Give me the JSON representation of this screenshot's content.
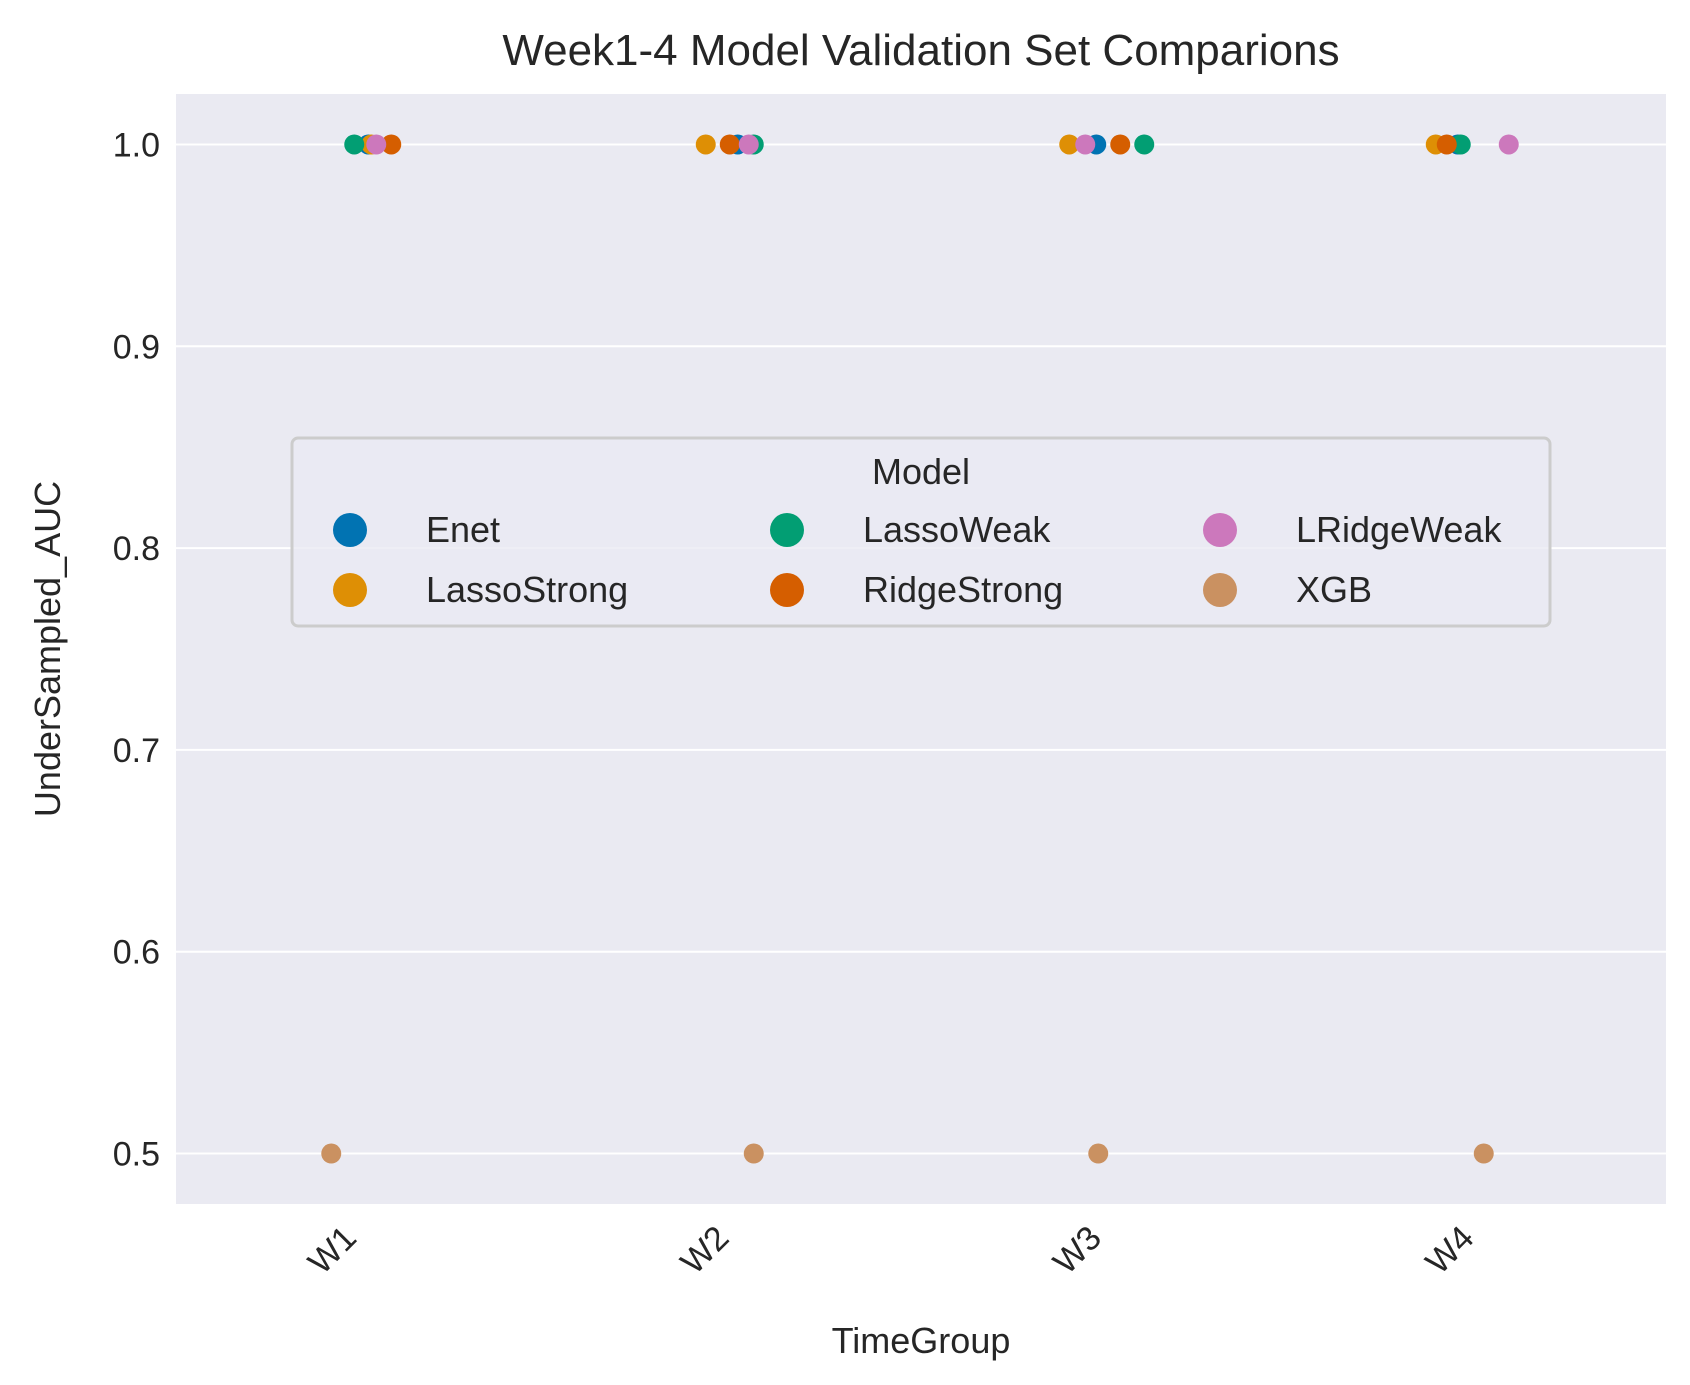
{
  "chart_data": {
    "type": "scatter",
    "title": "Week1-4 Model Validation Set Comparions",
    "xlabel": "TimeGroup",
    "ylabel": "UnderSampled_AUC",
    "categories": [
      "W1",
      "W2",
      "W3",
      "W4"
    ],
    "yticks": [
      "0.5",
      "0.6",
      "0.7",
      "0.8",
      "0.9",
      "1.0"
    ],
    "ylim": [
      0.475,
      1.025
    ],
    "grid": true,
    "legend": {
      "title": "Model",
      "placement": "center",
      "columns": 3
    },
    "series": [
      {
        "name": "Enet",
        "color": "#0173b2",
        "values": [
          1.0,
          1.0,
          1.0,
          1.0
        ]
      },
      {
        "name": "LassoStrong",
        "color": "#de8f05",
        "values": [
          1.0,
          1.0,
          1.0,
          1.0
        ]
      },
      {
        "name": "LassoWeak",
        "color": "#029e73",
        "values": [
          1.0,
          1.0,
          1.0,
          1.0
        ]
      },
      {
        "name": "RidgeStrong",
        "color": "#d55e00",
        "values": [
          1.0,
          1.0,
          1.0,
          1.0
        ]
      },
      {
        "name": "LRidgeWeak",
        "color": "#cc78bc",
        "values": [
          1.0,
          1.0,
          1.0,
          1.0
        ]
      },
      {
        "name": "XGB",
        "color": "#ca9161",
        "values": [
          0.5,
          0.5,
          0.5,
          0.5
        ]
      }
    ]
  }
}
